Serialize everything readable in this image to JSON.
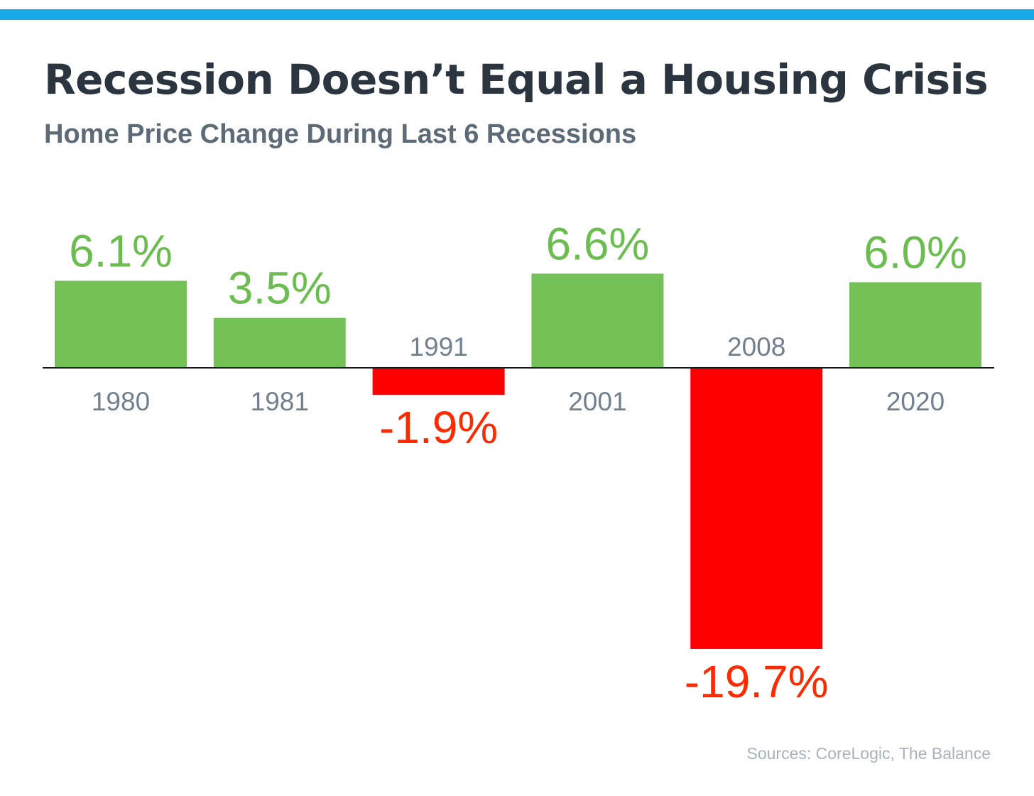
{
  "header": {
    "title": "Recession Doesn’t Equal a Housing Crisis",
    "subtitle": "Home Price Change During Last 6 Recessions"
  },
  "footer": {
    "source": "Sources:  CoreLogic, The Balance"
  },
  "colors": {
    "top_bar": "#18a9e9",
    "positive_bar": "#74c257",
    "negative_bar": "#ff0000",
    "positive_label": "#6bbd4f",
    "negative_label": "#ff2a00",
    "category_label": "#72808e",
    "axis": "#1a1a1a"
  },
  "chart_data": {
    "type": "bar",
    "categories": [
      "1980",
      "1981",
      "1991",
      "2001",
      "2008",
      "2020"
    ],
    "values": [
      6.1,
      3.5,
      -1.9,
      6.6,
      -19.7,
      6.0
    ],
    "data_labels": [
      "6.1%",
      "3.5%",
      "-1.9%",
      "6.6%",
      "-19.7%",
      "6.0%"
    ],
    "grid": false,
    "legend": "none"
  }
}
